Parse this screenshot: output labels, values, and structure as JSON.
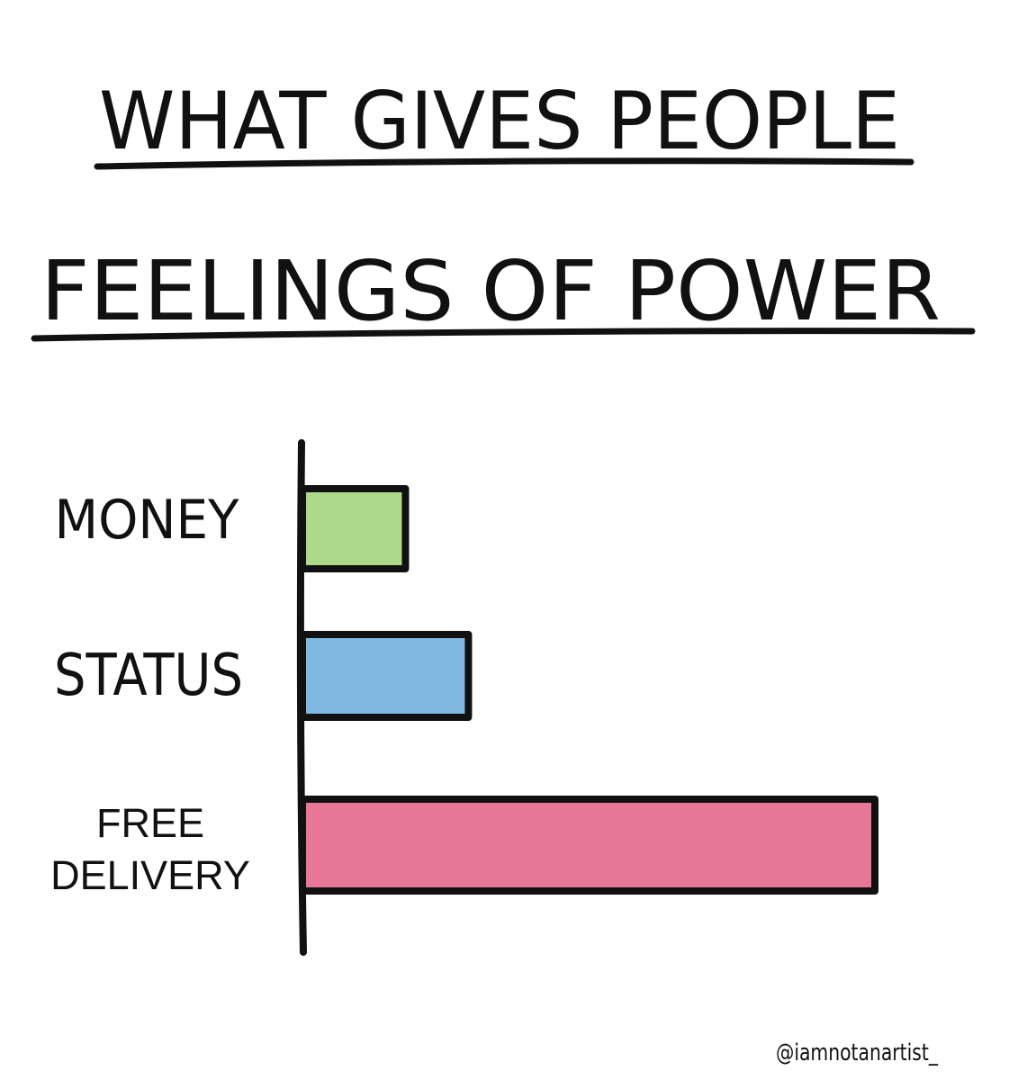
{
  "chart_data": {
    "type": "bar",
    "orientation": "horizontal",
    "title_lines": [
      "WHAT GIVES PEOPLE",
      "FEELINGS OF POWER"
    ],
    "categories": [
      "MONEY",
      "STATUS",
      "FREE DELIVERY"
    ],
    "category_lines": [
      [
        "MONEY"
      ],
      [
        "STATUS"
      ],
      [
        "FREE",
        "DELIVERY"
      ]
    ],
    "values": [
      18,
      29,
      100
    ],
    "xlim": [
      0,
      100
    ],
    "colors": [
      "#acd98a",
      "#80b8e0",
      "#e77797"
    ],
    "grid": false,
    "axis_ticks": false,
    "credit": "@iamnotanartist_"
  }
}
